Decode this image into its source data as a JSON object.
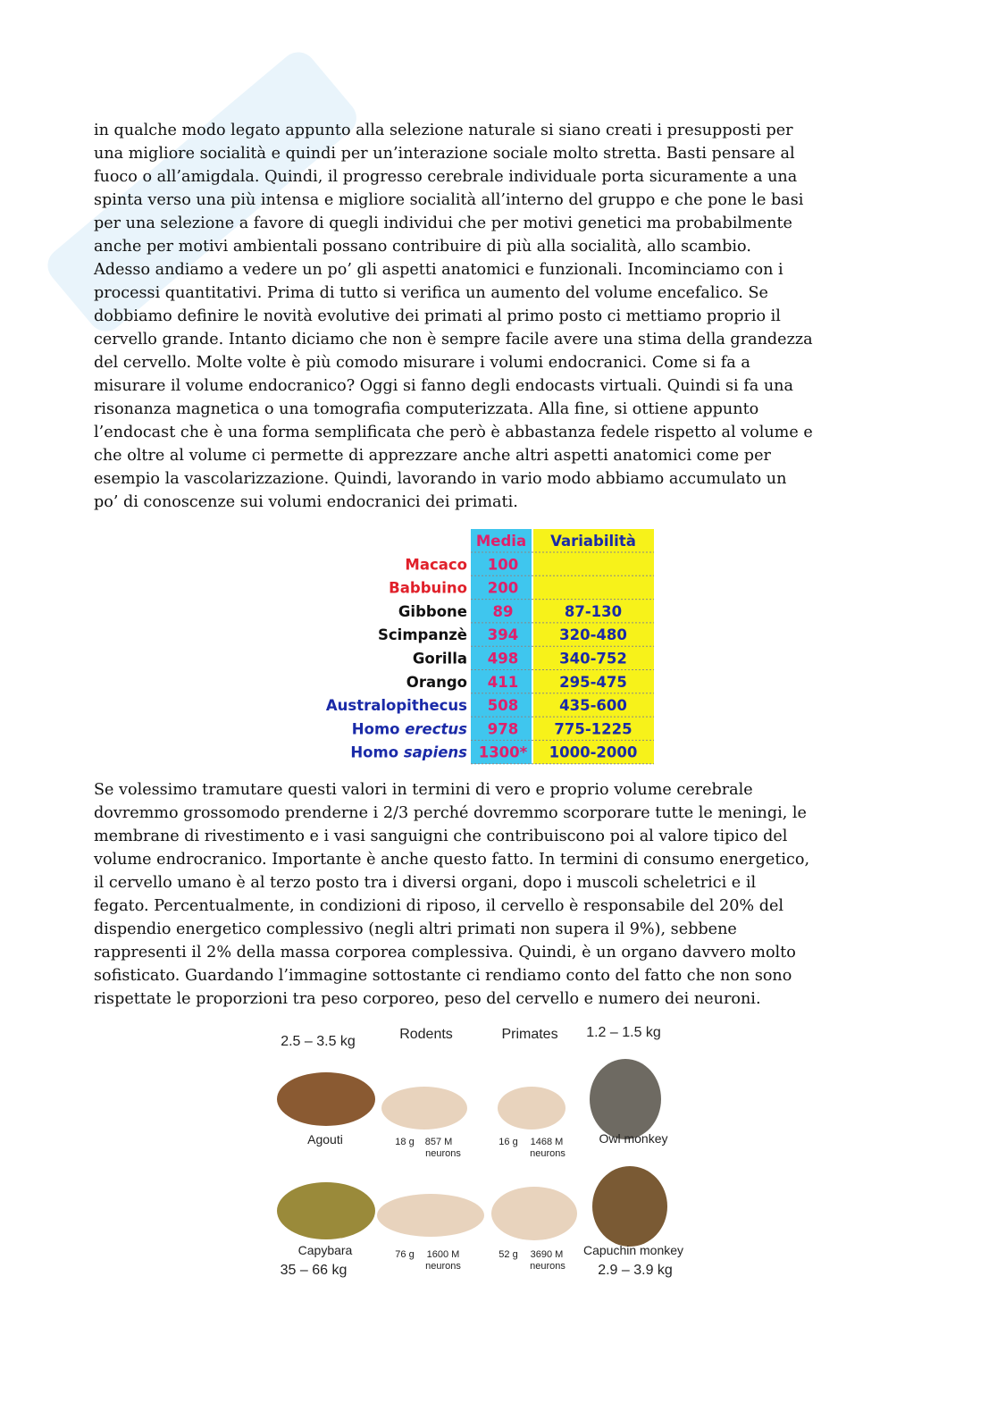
{
  "paragraphs": [
    {
      "lines": [
        "in qualche modo legato appunto alla selezione naturale si siano creati i presupposti per",
        "una migliore socialità e quindi per un’interazione sociale molto stretta. Basti pensare al",
        "fuoco o all’amigdala. Quindi, il progresso cerebrale individuale porta sicuramente a una",
        "spinta verso una più intensa e migliore socialità all’interno del gruppo e che pone le basi",
        "per una selezione a favore di quegli individui che per motivi genetici ma probabilmente",
        "anche per motivi ambientali possano contribuire di più alla socialità, allo scambio.",
        "Adesso andiamo a vedere un po’ gli aspetti anatomici e funzionali. Incominciamo con i",
        "processi quantitativi. Prima di tutto si verifica un aumento del volume encefalico. Se",
        "dobbiamo definire le novità evolutive dei primati al primo posto ci mettiamo proprio il",
        "cervello grande. Intanto diciamo che non è sempre facile avere una stima della grandezza",
        "del cervello. Molte volte è più comodo misurare i volumi endocranici. Come si fa a",
        "misurare il volume endocranico? Oggi si fanno degli endocasts virtuali. Quindi si fa una",
        "risonanza magnetica o una tomografia computerizzata. Alla fine, si ottiene appunto",
        "l’endocast che è una forma semplificata che però è abbastanza fedele rispetto al volume e",
        "che oltre al volume ci permette di apprezzare anche altri aspetti anatomici come per",
        "esempio la vascolarizzazione. Quindi, lavorando in vario modo abbiamo accumulato un",
        "po’ di conoscenze sui volumi endocranici dei primati."
      ]
    },
    {
      "lines": [
        "Se volessimo tramutare questi valori in termini di vero e proprio volume cerebrale",
        "dovremmo grossomodo prenderne i 2/3 perché dovremmo scorporare tutte le meningi, le",
        "membrane di rivestimento e i vasi sanguigni che contribuiscono poi al valore tipico del",
        "volume endrocranico. Importante è anche questo fatto. In termini di consumo energetico,",
        "il cervello umano è al terzo posto tra i diversi organi, dopo i muscoli scheletrici e il",
        "fegato. Percentualmente, in condizioni di riposo, il cervello è responsabile del 20% del",
        "dispendio energetico complessivo (negli altri primati non supera il 9%), sebbene",
        "rappresenti il 2% della massa corporea complessiva. Quindi, è un organo davvero molto",
        "sofisticato. Guardando l’immagine sottostante ci rendiamo conto del fatto che non sono",
        "rispettate le proporzioni tra peso corporeo, peso del cervello e numero dei neuroni."
      ]
    }
  ],
  "table": {
    "header": [
      "Media",
      "Variabilità"
    ],
    "rows": [
      {
        "name": "Macaco",
        "media": "100",
        "variability": null,
        "color": "#e0202a"
      },
      {
        "name": "Babbuino",
        "media": "200",
        "variability": null,
        "color": "#e0202a"
      },
      {
        "name": "Gibbone",
        "media": "89",
        "variability": "87-130",
        "color": "#111111"
      },
      {
        "name": "Scimpanzè",
        "media": "394",
        "variability": "320-480",
        "color": "#111111"
      },
      {
        "name": "Gorilla",
        "media": "498",
        "variability": "340-752",
        "color": "#111111"
      },
      {
        "name": "Orango",
        "media": "411",
        "variability": "295-475",
        "color": "#111111"
      },
      {
        "name": "Australopithecus",
        "media": "508",
        "variability": "435-600",
        "color": "#1a2aa8"
      },
      {
        "name": "Homo",
        "species": "erectus",
        "media": "978",
        "variability": "775-1225",
        "color": "#1a2aa8"
      },
      {
        "name": "Homo",
        "species": "sapiens",
        "media": "1300*",
        "variability": "1000-2000",
        "color": "#1a2aa8"
      }
    ]
  },
  "figure": {
    "labels": [
      "2.5 – 3.5 kg",
      "Rodents",
      "Primates",
      "1.2 – 1.5 kg",
      "Agouti",
      "18 g",
      "857 M",
      "neurons",
      "16 g",
      "1468 M",
      "neurons",
      "Owl monkey",
      "Capybara",
      "76 g",
      "1600 M",
      "neurons",
      "52 g",
      "3690 M",
      "neurons",
      "Capuchin monkey",
      "35 – 66 kg",
      "2.9 – 3.9 kg"
    ]
  }
}
